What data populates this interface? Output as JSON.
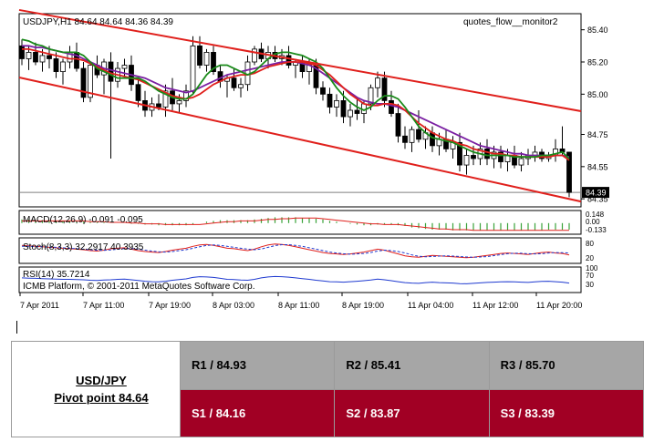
{
  "chart_data": {
    "type": "candlestick",
    "symbol_header": "USDJPY,H1  84.64 84.64 84.36 84.39",
    "watermark": "quotes_flow__monitor2",
    "copyright": "ICMB Platform, © 2001-2011 MetaQuotes Software Corp.",
    "ylim": [
      84.3,
      85.5
    ],
    "y_ticks": [
      "85.40",
      "85.20",
      "85.00",
      "84.75",
      "84.55",
      "84.35"
    ],
    "current_price": "84.39",
    "x_ticks": [
      "7 Apr 2011",
      "7 Apr 11:00",
      "7 Apr 19:00",
      "8 Apr 03:00",
      "8 Apr 11:00",
      "8 Apr 19:00",
      "11 Apr 04:00",
      "11 Apr 12:00",
      "11 Apr 20:00"
    ],
    "candles": [
      [
        85.3,
        85.34,
        85.18,
        85.22
      ],
      [
        85.22,
        85.3,
        85.15,
        85.26
      ],
      [
        85.26,
        85.32,
        85.18,
        85.2
      ],
      [
        85.2,
        85.28,
        85.14,
        85.24
      ],
      [
        85.24,
        85.3,
        85.16,
        85.22
      ],
      [
        85.22,
        85.26,
        85.1,
        85.14
      ],
      [
        85.14,
        85.22,
        85.06,
        85.2
      ],
      [
        85.2,
        85.3,
        85.16,
        85.26
      ],
      [
        85.26,
        85.32,
        85.14,
        85.16
      ],
      [
        85.16,
        85.2,
        84.95,
        84.98
      ],
      [
        84.98,
        85.2,
        84.95,
        85.18
      ],
      [
        85.18,
        85.24,
        85.1,
        85.12
      ],
      [
        85.12,
        85.22,
        85.0,
        85.2
      ],
      [
        85.2,
        85.26,
        84.6,
        85.08
      ],
      [
        85.08,
        85.2,
        85.04,
        85.16
      ],
      [
        85.16,
        85.22,
        85.1,
        85.18
      ],
      [
        85.18,
        85.24,
        85.02,
        85.06
      ],
      [
        85.06,
        85.1,
        84.92,
        84.96
      ],
      [
        84.96,
        85.02,
        84.86,
        84.9
      ],
      [
        84.9,
        84.98,
        84.86,
        84.94
      ],
      [
        84.94,
        85.0,
        84.9,
        84.92
      ],
      [
        84.92,
        85.06,
        84.86,
        85.02
      ],
      [
        85.02,
        85.1,
        84.9,
        84.94
      ],
      [
        84.94,
        85.0,
        84.88,
        84.96
      ],
      [
        84.96,
        85.06,
        84.92,
        85.02
      ],
      [
        85.02,
        85.36,
        85.0,
        85.3
      ],
      [
        85.3,
        85.36,
        85.16,
        85.18
      ],
      [
        85.18,
        85.28,
        85.14,
        85.26
      ],
      [
        85.26,
        85.3,
        85.12,
        85.14
      ],
      [
        85.14,
        85.18,
        85.04,
        85.08
      ],
      [
        85.08,
        85.12,
        84.98,
        85.1
      ],
      [
        85.1,
        85.16,
        85.02,
        85.04
      ],
      [
        85.04,
        85.1,
        84.98,
        85.06
      ],
      [
        85.06,
        85.24,
        85.02,
        85.2
      ],
      [
        85.2,
        85.3,
        85.18,
        85.28
      ],
      [
        85.28,
        85.32,
        85.2,
        85.22
      ],
      [
        85.22,
        85.3,
        85.16,
        85.26
      ],
      [
        85.26,
        85.3,
        85.2,
        85.22
      ],
      [
        85.22,
        85.28,
        85.18,
        85.24
      ],
      [
        85.24,
        85.3,
        85.16,
        85.18
      ],
      [
        85.18,
        85.22,
        85.1,
        85.2
      ],
      [
        85.2,
        85.24,
        85.1,
        85.14
      ],
      [
        85.14,
        85.22,
        85.06,
        85.18
      ],
      [
        85.18,
        85.22,
        85.0,
        85.04
      ],
      [
        85.04,
        85.08,
        84.96,
        85.0
      ],
      [
        85.0,
        85.04,
        84.88,
        84.92
      ],
      [
        84.92,
        85.0,
        84.86,
        84.96
      ],
      [
        84.96,
        85.02,
        84.82,
        84.86
      ],
      [
        84.86,
        84.94,
        84.8,
        84.9
      ],
      [
        84.9,
        84.98,
        84.84,
        84.88
      ],
      [
        84.88,
        84.96,
        84.82,
        84.94
      ],
      [
        84.94,
        85.06,
        84.9,
        85.04
      ],
      [
        85.04,
        85.14,
        84.98,
        85.1
      ],
      [
        85.1,
        85.14,
        84.92,
        84.96
      ],
      [
        84.96,
        85.02,
        84.86,
        84.88
      ],
      [
        84.88,
        84.94,
        84.7,
        84.74
      ],
      [
        84.74,
        84.8,
        84.66,
        84.7
      ],
      [
        84.7,
        84.8,
        84.64,
        84.78
      ],
      [
        84.78,
        84.9,
        84.7,
        84.72
      ],
      [
        84.72,
        84.8,
        84.66,
        84.76
      ],
      [
        84.76,
        84.8,
        84.64,
        84.68
      ],
      [
        84.68,
        84.76,
        84.62,
        84.72
      ],
      [
        84.72,
        84.78,
        84.64,
        84.66
      ],
      [
        84.66,
        84.74,
        84.6,
        84.7
      ],
      [
        84.7,
        84.76,
        84.52,
        84.56
      ],
      [
        84.56,
        84.66,
        84.5,
        84.62
      ],
      [
        84.62,
        84.68,
        84.56,
        84.6
      ],
      [
        84.6,
        84.7,
        84.56,
        84.66
      ],
      [
        84.66,
        84.72,
        84.56,
        84.6
      ],
      [
        84.6,
        84.68,
        84.54,
        84.64
      ],
      [
        84.64,
        84.68,
        84.54,
        84.58
      ],
      [
        84.58,
        84.66,
        84.52,
        84.62
      ],
      [
        84.62,
        84.68,
        84.54,
        84.56
      ],
      [
        84.56,
        84.64,
        84.52,
        84.6
      ],
      [
        84.6,
        84.66,
        84.56,
        84.62
      ],
      [
        84.62,
        84.68,
        84.58,
        84.64
      ],
      [
        84.64,
        84.66,
        84.58,
        84.6
      ],
      [
        84.6,
        84.64,
        84.58,
        84.62
      ],
      [
        84.62,
        84.72,
        84.58,
        84.66
      ],
      [
        84.66,
        84.8,
        84.62,
        84.64
      ],
      [
        84.64,
        84.64,
        84.36,
        84.39
      ]
    ],
    "ma_green": [
      85.34,
      85.33,
      85.31,
      85.3,
      85.28,
      85.27,
      85.26,
      85.26,
      85.26,
      85.24,
      85.2,
      85.16,
      85.14,
      85.12,
      85.1,
      85.1,
      85.1,
      85.1,
      85.08,
      85.05,
      85.02,
      85.0,
      84.98,
      84.97,
      84.97,
      85.0,
      85.06,
      85.12,
      85.16,
      85.18,
      85.18,
      85.16,
      85.14,
      85.12,
      85.14,
      85.18,
      85.22,
      85.25,
      85.26,
      85.26,
      85.25,
      85.24,
      85.22,
      85.2,
      85.16,
      85.1,
      85.04,
      84.99,
      84.95,
      84.92,
      84.9,
      84.92,
      84.96,
      84.99,
      84.99,
      84.97,
      84.92,
      84.86,
      84.8,
      84.76,
      84.73,
      84.72,
      84.71,
      84.7,
      84.68,
      84.66,
      84.64,
      84.63,
      84.62,
      84.62,
      84.62,
      84.62,
      84.61,
      84.61,
      84.61,
      84.61,
      84.62,
      84.62,
      84.63,
      84.64,
      84.6
    ],
    "ma_red": [
      85.28,
      85.28,
      85.27,
      85.26,
      85.25,
      85.24,
      85.23,
      85.22,
      85.22,
      85.21,
      85.19,
      85.17,
      85.15,
      85.13,
      85.12,
      85.11,
      85.1,
      85.09,
      85.07,
      85.05,
      85.03,
      85.01,
      84.99,
      84.98,
      84.97,
      84.98,
      85.0,
      85.03,
      85.06,
      85.08,
      85.1,
      85.11,
      85.12,
      85.12,
      85.13,
      85.15,
      85.17,
      85.18,
      85.19,
      85.2,
      85.2,
      85.2,
      85.19,
      85.18,
      85.15,
      85.12,
      85.08,
      85.04,
      85.0,
      84.97,
      84.94,
      84.93,
      84.93,
      84.94,
      84.94,
      84.93,
      84.9,
      84.86,
      84.82,
      84.79,
      84.76,
      84.74,
      84.72,
      84.71,
      84.69,
      84.68,
      84.66,
      84.65,
      84.64,
      84.63,
      84.63,
      84.62,
      84.62,
      84.61,
      84.61,
      84.61,
      84.61,
      84.61,
      84.62,
      84.62,
      84.59
    ],
    "ma_purple": [
      85.3,
      85.3,
      85.29,
      85.29,
      85.28,
      85.27,
      85.26,
      85.25,
      85.24,
      85.22,
      85.2,
      85.18,
      85.16,
      85.15,
      85.14,
      85.13,
      85.12,
      85.11,
      85.1,
      85.08,
      85.06,
      85.04,
      85.03,
      85.02,
      85.01,
      85.02,
      85.04,
      85.06,
      85.08,
      85.1,
      85.12,
      85.13,
      85.14,
      85.15,
      85.16,
      85.17,
      85.18,
      85.19,
      85.2,
      85.2,
      85.2,
      85.19,
      85.18,
      85.16,
      85.13,
      85.1,
      85.07,
      85.04,
      85.01,
      84.98,
      84.96,
      84.95,
      84.94,
      84.94,
      84.93,
      84.92,
      84.9,
      84.88,
      84.86,
      84.84,
      84.82,
      84.8,
      84.78,
      84.76,
      84.74,
      84.72,
      84.7,
      84.68,
      84.67,
      84.66,
      84.65,
      84.64,
      84.63,
      84.63,
      84.62,
      84.62,
      84.62,
      84.62,
      84.62,
      84.62,
      84.61
    ],
    "channel_upper": [
      [
        0,
        85.52
      ],
      [
        81,
        84.9
      ]
    ],
    "channel_lower": [
      [
        0,
        85.1
      ],
      [
        81,
        84.34
      ]
    ],
    "macd": {
      "label": "MACD(12,26,9) -0.091 -0.095",
      "ticks": [
        "0.148",
        "0.00",
        "-0.133"
      ],
      "ylim": [
        -0.14,
        0.16
      ],
      "values": [
        0.05,
        0.05,
        0.04,
        0.04,
        0.04,
        0.03,
        0.03,
        0.03,
        0.03,
        0.02,
        0.02,
        0.01,
        0.01,
        0.0,
        0.0,
        0.0,
        -0.01,
        -0.01,
        -0.02,
        -0.02,
        -0.03,
        -0.03,
        -0.03,
        -0.03,
        -0.03,
        -0.02,
        0.0,
        0.02,
        0.03,
        0.04,
        0.04,
        0.04,
        0.04,
        0.04,
        0.05,
        0.06,
        0.07,
        0.08,
        0.08,
        0.08,
        0.08,
        0.07,
        0.07,
        0.06,
        0.05,
        0.03,
        0.02,
        0.0,
        -0.01,
        -0.02,
        -0.03,
        -0.03,
        -0.02,
        -0.02,
        -0.02,
        -0.03,
        -0.04,
        -0.06,
        -0.07,
        -0.08,
        -0.09,
        -0.09,
        -0.09,
        -0.1,
        -0.1,
        -0.1,
        -0.1,
        -0.1,
        -0.1,
        -0.1,
        -0.1,
        -0.1,
        -0.1,
        -0.1,
        -0.1,
        -0.1,
        -0.1,
        -0.09,
        -0.09,
        -0.09,
        -0.09
      ],
      "signal": [
        0.03,
        0.03,
        0.03,
        0.03,
        0.03,
        0.03,
        0.03,
        0.03,
        0.03,
        0.03,
        0.02,
        0.02,
        0.02,
        0.01,
        0.01,
        0.01,
        0.0,
        0.0,
        -0.01,
        -0.01,
        -0.01,
        -0.02,
        -0.02,
        -0.02,
        -0.02,
        -0.02,
        -0.02,
        -0.01,
        0.0,
        0.01,
        0.02,
        0.02,
        0.03,
        0.03,
        0.03,
        0.04,
        0.05,
        0.05,
        0.06,
        0.06,
        0.07,
        0.07,
        0.07,
        0.07,
        0.06,
        0.05,
        0.04,
        0.03,
        0.02,
        0.01,
        0.0,
        -0.01,
        -0.01,
        -0.02,
        -0.02,
        -0.02,
        -0.03,
        -0.04,
        -0.05,
        -0.06,
        -0.07,
        -0.08,
        -0.08,
        -0.09,
        -0.09,
        -0.09,
        -0.1,
        -0.1,
        -0.1,
        -0.1,
        -0.1,
        -0.1,
        -0.1,
        -0.1,
        -0.1,
        -0.1,
        -0.1,
        -0.1,
        -0.1,
        -0.1,
        -0.1
      ]
    },
    "stoch": {
      "label": "Stoch(8,3,3) 32.2917 40.3935",
      "ticks": [
        "80",
        "20"
      ],
      "ylim": [
        0,
        100
      ],
      "main": [
        72,
        70,
        68,
        66,
        64,
        62,
        60,
        58,
        56,
        54,
        50,
        48,
        52,
        58,
        60,
        62,
        56,
        50,
        46,
        44,
        42,
        46,
        52,
        56,
        60,
        68,
        74,
        76,
        72,
        66,
        60,
        58,
        54,
        50,
        56,
        66,
        74,
        78,
        76,
        72,
        66,
        60,
        54,
        48,
        42,
        38,
        36,
        34,
        36,
        40,
        44,
        50,
        56,
        52,
        44,
        36,
        28,
        24,
        22,
        26,
        30,
        28,
        26,
        24,
        22,
        20,
        22,
        26,
        30,
        34,
        38,
        40,
        38,
        36,
        34,
        38,
        42,
        44,
        40,
        38,
        32
      ],
      "signal": [
        68,
        68,
        67,
        66,
        65,
        64,
        62,
        60,
        58,
        56,
        54,
        52,
        51,
        53,
        56,
        59,
        59,
        56,
        52,
        48,
        45,
        44,
        46,
        50,
        54,
        60,
        66,
        72,
        74,
        72,
        68,
        64,
        60,
        56,
        54,
        57,
        64,
        71,
        75,
        75,
        72,
        68,
        62,
        56,
        50,
        44,
        40,
        37,
        35,
        36,
        38,
        42,
        48,
        52,
        50,
        46,
        40,
        32,
        26,
        24,
        25,
        27,
        28,
        27,
        25,
        23,
        22,
        23,
        25,
        29,
        33,
        37,
        39,
        39,
        37,
        36,
        37,
        40,
        42,
        41,
        40
      ]
    },
    "rsi": {
      "label": "RSI(14) 35.7214",
      "ticks": [
        "100",
        "70",
        "30"
      ],
      "ylim": [
        0,
        100
      ],
      "values": [
        58,
        57,
        56,
        55,
        54,
        53,
        52,
        52,
        51,
        50,
        48,
        47,
        49,
        50,
        52,
        53,
        50,
        47,
        44,
        42,
        41,
        44,
        48,
        51,
        54,
        60,
        63,
        62,
        60,
        56,
        52,
        51,
        49,
        48,
        52,
        58,
        62,
        64,
        63,
        61,
        58,
        55,
        52,
        48,
        45,
        42,
        41,
        40,
        42,
        44,
        46,
        49,
        53,
        50,
        46,
        42,
        38,
        36,
        35,
        38,
        40,
        38,
        37,
        36,
        34,
        33,
        35,
        37,
        39,
        40,
        41,
        42,
        41,
        40,
        39,
        41,
        43,
        44,
        42,
        40,
        36
      ]
    }
  },
  "pivot_table": {
    "pair": "USD/JPY",
    "pivot": "Pivot point 84.64",
    "r1": "R1 / 84.93",
    "r2": "R2 / 85.41",
    "r3": "R3 / 85.70",
    "s1": "S1 / 84.16",
    "s2": "S2 / 83.87",
    "s3": "S3 / 83.39"
  }
}
